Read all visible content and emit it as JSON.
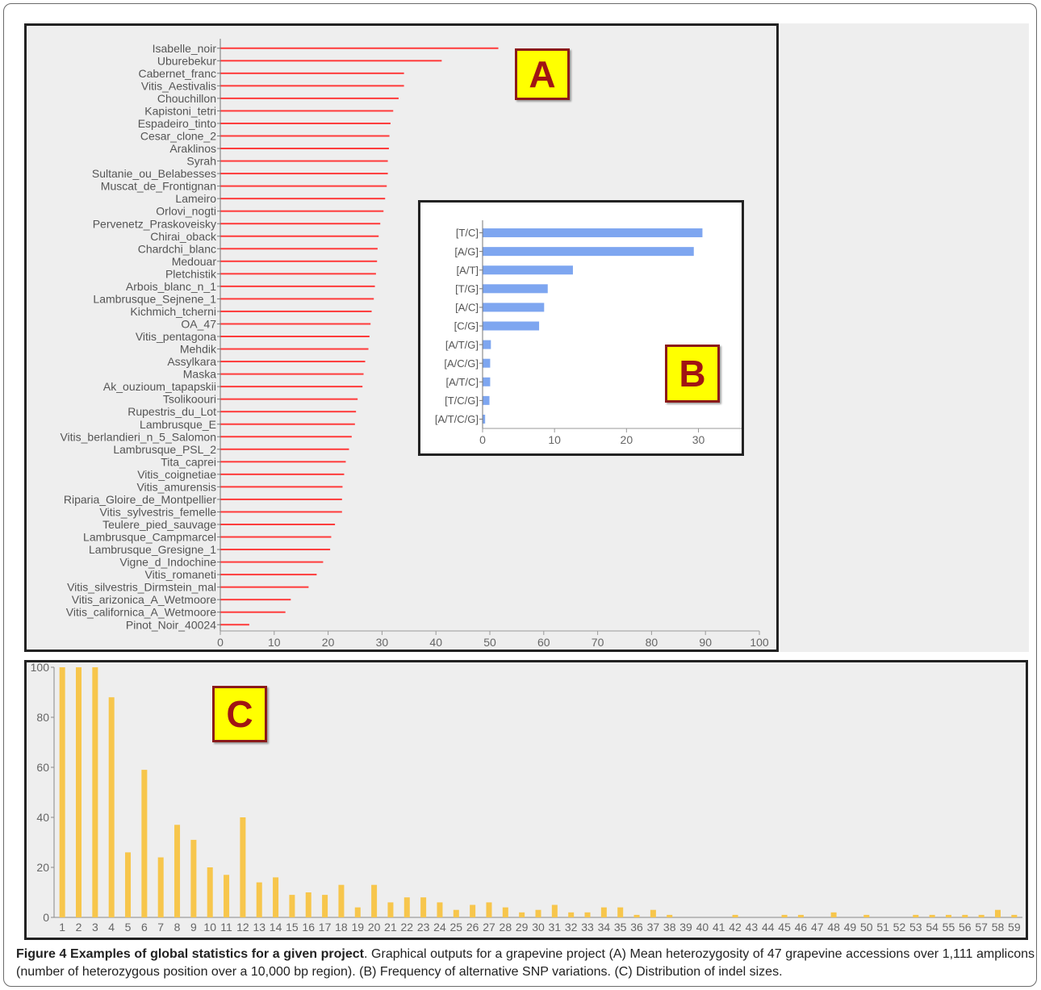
{
  "chart_data": [
    {
      "type": "bar",
      "orientation": "horizontal",
      "panel_label": "A",
      "categories": [
        "Isabelle_noir",
        "Uburebekur",
        "Cabernet_franc",
        "Vitis_Aestivalis",
        "Chouchillon",
        "Kapistoni_tetri",
        "Espadeiro_tinto",
        "Cesar_clone_2",
        "Araklinos",
        "Syrah",
        "Sultanie_ou_Belabesses",
        "Muscat_de_Frontignan",
        "Lameiro",
        "Orlovi_nogti",
        "Pervenetz_Praskoveisky",
        "Chirai_oback",
        "Chardchi_blanc",
        "Medouar",
        "Pletchistik",
        "Arbois_blanc_n_1",
        "Lambrusque_Sejnene_1",
        "Kichmich_tcherni",
        "OA_47",
        "Vitis_pentagona",
        "Mehdik",
        "Assylkara",
        "Maska",
        "Ak_ouzioum_tapapskii",
        "Tsolikoouri",
        "Rupestris_du_Lot",
        "Lambrusque_E",
        "Vitis_berlandieri_n_5_Salomon",
        "Lambrusque_PSL_2",
        "Tita_caprei",
        "Vitis_coignetiae",
        "Vitis_amurensis",
        "Riparia_Gloire_de_Montpellier",
        "Vitis_sylvestris_femelle",
        "Teulere_pied_sauvage",
        "Lambrusque_Campmarcel",
        "Lambrusque_Gresigne_1",
        "Vigne_d_Indochine",
        "Vitis_romaneti",
        "Vitis_silvestris_Dirmstein_mal",
        "Vitis_arizonica_A_Wetmoore",
        "Vitis_californica_A_Wetmoore",
        "Pinot_Noir_40024"
      ],
      "values": [
        51.5,
        41,
        34,
        34,
        33,
        32,
        31.5,
        31.3,
        31.2,
        31,
        31,
        30.8,
        30.5,
        30.2,
        29.6,
        29.3,
        29.1,
        29,
        28.8,
        28.6,
        28.4,
        28,
        27.8,
        27.6,
        27.4,
        26.8,
        26.5,
        26.3,
        25.4,
        25.1,
        24.9,
        24.3,
        23.8,
        23.2,
        22.9,
        22.6,
        22.5,
        22.5,
        21.2,
        20.5,
        20.3,
        19,
        17.8,
        16.3,
        13,
        12,
        5.3
      ],
      "xlim": [
        0,
        100
      ],
      "xticks": [
        "0",
        "10",
        "20",
        "30",
        "40",
        "50",
        "60",
        "70",
        "80",
        "90",
        "100"
      ],
      "colors": {
        "bar": "#ff3b3b"
      }
    },
    {
      "type": "bar",
      "orientation": "horizontal",
      "panel_label": "B",
      "categories": [
        "[T/C]",
        "[A/G]",
        "[A/T]",
        "[T/G]",
        "[A/C]",
        "[C/G]",
        "[A/T/G]",
        "[A/C/G]",
        "[A/T/C]",
        "[T/C/G]",
        "[A/T/C/G]"
      ],
      "values": [
        30.5,
        29.3,
        12.5,
        9,
        8.5,
        7.8,
        1.1,
        1,
        1,
        0.9,
        0.3
      ],
      "xlim": [
        0,
        36
      ],
      "xticks": [
        "0",
        "10",
        "20",
        "30"
      ],
      "colors": {
        "bar": "#7ea6f0"
      }
    },
    {
      "type": "bar",
      "orientation": "vertical",
      "panel_label": "C",
      "categories": [
        "1",
        "2",
        "3",
        "4",
        "5",
        "6",
        "7",
        "8",
        "9",
        "10",
        "11",
        "12",
        "13",
        "14",
        "15",
        "16",
        "17",
        "18",
        "19",
        "20",
        "21",
        "22",
        "23",
        "24",
        "25",
        "26",
        "27",
        "28",
        "29",
        "30",
        "31",
        "32",
        "33",
        "34",
        "35",
        "36",
        "37",
        "38",
        "39",
        "40",
        "41",
        "42",
        "43",
        "44",
        "45",
        "46",
        "47",
        "48",
        "49",
        "50",
        "51",
        "52",
        "53",
        "54",
        "55",
        "56",
        "57",
        "58",
        "59"
      ],
      "values": [
        100,
        100,
        100,
        88,
        26,
        59,
        24,
        37,
        31,
        20,
        17,
        40,
        14,
        16,
        9,
        10,
        9,
        13,
        4,
        13,
        6,
        8,
        8,
        6,
        3,
        5,
        6,
        4,
        2,
        3,
        5,
        2,
        2,
        4,
        4,
        1,
        3,
        1,
        0,
        0,
        0,
        1,
        0,
        0,
        1,
        1,
        0,
        2,
        0,
        1,
        0,
        0,
        1,
        1,
        1,
        1,
        1,
        3,
        1
      ],
      "ylim": [
        0,
        100
      ],
      "yticks": [
        "0",
        "20",
        "40",
        "60",
        "80",
        "100"
      ],
      "colors": {
        "bar": "#f7c64c"
      }
    }
  ],
  "caption": {
    "title": "Figure 4 Examples of global statistics for a given project",
    "text": ". Graphical outputs for a grapevine project (A) Mean heterozygosity of 47 grapevine accessions over 1,111 amplicons (number of heterozygous position over a 10,000 bp region). (B) Frequency of alternative SNP variations. (C) Distribution of indel sizes."
  }
}
